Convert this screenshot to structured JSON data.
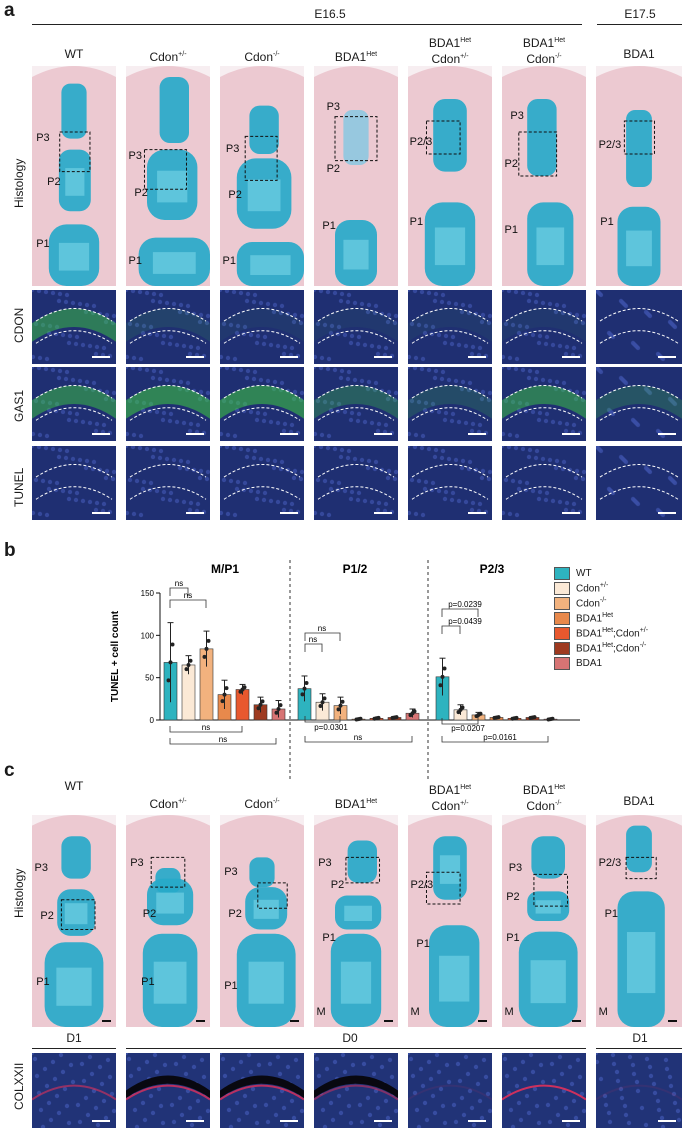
{
  "panels": {
    "a": "a",
    "b": "b",
    "c": "c"
  },
  "stage_labels": {
    "e165": "E16.5",
    "e175": "E17.5"
  },
  "genotypes": {
    "wt": "WT",
    "cdon_het_base": "Cdon",
    "cdon_het_sup": "+/-",
    "cdon_null_base": "Cdon",
    "cdon_null_sup": "-/-",
    "bda1het_base": "BDA1",
    "bda1het_sup": "Het",
    "bda1het_cdonhet_l1_base": "BDA1",
    "bda1het_cdonhet_l1_sup": "Het",
    "bda1het_cdonhet_l2_base": "Cdon",
    "bda1het_cdonhet_l2_sup": "+/-",
    "bda1het_cdonnull_l1_base": "BDA1",
    "bda1het_cdonnull_l1_sup": "Het",
    "bda1het_cdonnull_l2_base": "Cdon",
    "bda1het_cdonnull_l2_sup": "-/-",
    "bda1": "BDA1"
  },
  "row_labels_a": {
    "histology": "Histology",
    "cdon": "CDON",
    "gas1": "GAS1",
    "tunel": "TUNEL"
  },
  "row_labels_c": {
    "histology": "Histology",
    "colxxii": "COLXXII"
  },
  "phalanx_labels_a": [
    [
      "P3",
      "P2",
      "P1"
    ],
    [
      "P3",
      "P2",
      "P1"
    ],
    [
      "P3",
      "P2",
      "P1"
    ],
    [
      "P3",
      "P2",
      "P1"
    ],
    [
      "P2/3",
      "P1"
    ],
    [
      "P3",
      "P2",
      "P1"
    ],
    [
      "P2/3",
      "P1"
    ]
  ],
  "phalanx_labels_c": [
    [
      "P3",
      "P2",
      "P1"
    ],
    [
      "P3",
      "P2",
      "P1"
    ],
    [
      "P3",
      "P2",
      "P1"
    ],
    [
      "P3",
      "P2",
      "P1",
      "M"
    ],
    [
      "P2/3",
      "P1",
      "M"
    ],
    [
      "P3",
      "P2",
      "P1",
      "M"
    ],
    [
      "P2/3",
      "P1",
      "M"
    ]
  ],
  "digit_labels": {
    "d1_left": "D1",
    "d0": "D0",
    "d1_right": "D1"
  },
  "colors": {
    "wt": "#2eb3bf",
    "cdon_het": "#fbe9d6",
    "cdon_null": "#f2b27e",
    "bda1het": "#e8894c",
    "bda1het_cdonhet": "#e8582e",
    "bda1het_cdonnull": "#9e3a20",
    "bda1": "#d77474"
  },
  "chart_data": {
    "type": "bar",
    "ylabel": "TUNEL + cell count",
    "ylim": [
      0,
      150
    ],
    "yticks": [
      0,
      50,
      100,
      150
    ],
    "groups": [
      "M/P1",
      "P1/2",
      "P2/3"
    ],
    "legend": [
      {
        "base": "WT",
        "sup": ""
      },
      {
        "base": "Cdon",
        "sup": "+/-"
      },
      {
        "base": "Cdon",
        "sup": "-/-"
      },
      {
        "base": "BDA1",
        "sup": "Het"
      },
      {
        "base": "BDA1",
        "sup": "Het",
        "tail": ";Cdon",
        "tail_sup": "+/-"
      },
      {
        "base": "BDA1",
        "sup": "Het",
        "tail": ";Cdon",
        "tail_sup": "-/-"
      },
      {
        "base": "BDA1",
        "sup": ""
      }
    ],
    "series": [
      {
        "name": "WT",
        "values": [
          68,
          37,
          51
        ],
        "errors": [
          47,
          15,
          22
        ]
      },
      {
        "name": "Cdon+/-",
        "values": [
          65,
          21,
          12
        ],
        "errors": [
          11,
          10,
          6
        ]
      },
      {
        "name": "Cdon-/-",
        "values": [
          84,
          17,
          6
        ],
        "errors": [
          21,
          10,
          3
        ]
      },
      {
        "name": "BDA1Het",
        "values": [
          30,
          1,
          3
        ],
        "errors": [
          17,
          1,
          1
        ]
      },
      {
        "name": "BDA1Het;Cdon+/-",
        "values": [
          36,
          2,
          2
        ],
        "errors": [
          6,
          1,
          1
        ]
      },
      {
        "name": "BDA1Het;Cdon-/-",
        "values": [
          18,
          3,
          3
        ],
        "errors": [
          9,
          1,
          1
        ]
      },
      {
        "name": "BDA1",
        "values": [
          13,
          8,
          1
        ],
        "errors": [
          10,
          5,
          1
        ]
      }
    ],
    "annotations": {
      "mp1_ns_top1": "ns",
      "mp1_ns_top2": "ns",
      "mp1_ns_bot1": "ns",
      "mp1_ns_bot2": "ns",
      "p12_ns_top1": "ns",
      "p12_ns_top2": "ns",
      "p12_p_bot1": "p=0.0301",
      "p12_ns_bot2": "ns",
      "p23_p_top1": "p=0.0239",
      "p23_p_top2": "p=0.0439",
      "p23_p_bot1": "p=0.0207",
      "p23_p_bot2": "p=0.0161"
    }
  }
}
